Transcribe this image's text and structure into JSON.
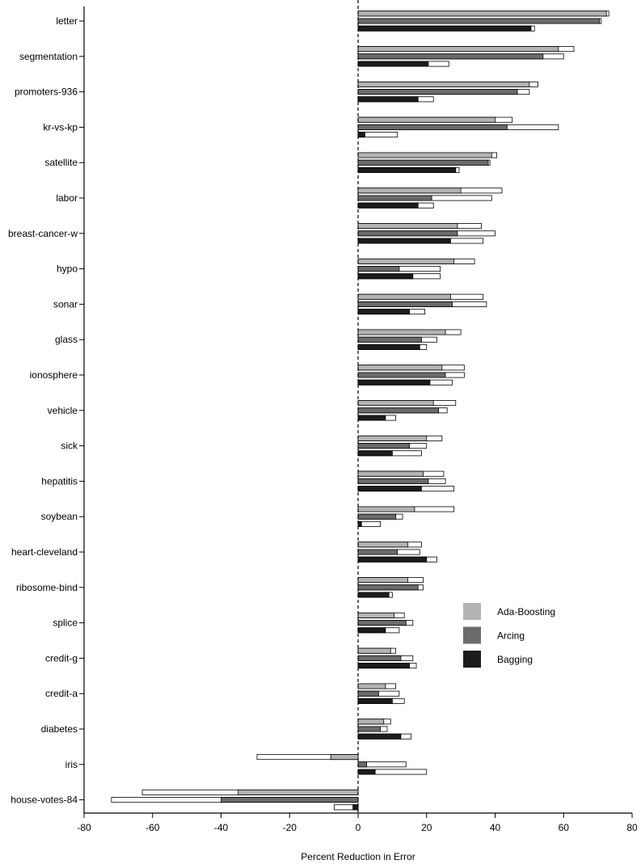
{
  "chart_data": {
    "type": "bar",
    "orientation": "horizontal",
    "xlabel": "Percent Reduction in Error",
    "xlim": [
      -80,
      80
    ],
    "x_ticks": [
      "-80",
      "-60",
      "-40",
      "-20",
      "0",
      "20",
      "40",
      "60",
      "80"
    ],
    "zero_line": "dashed",
    "grid": false,
    "legend_position": "right",
    "categories": [
      "letter",
      "segmentation",
      "promoters-936",
      "kr-vs-kp",
      "satellite",
      "labor",
      "breast-cancer-w",
      "hypo",
      "sonar",
      "glass",
      "ionosphere",
      "vehicle",
      "sick",
      "hepatitis",
      "soybean",
      "heart-cleveland",
      "ribosome-bind",
      "splice",
      "credit-g",
      "credit-a",
      "diabetes",
      "iris",
      "house-votes-84"
    ],
    "series": [
      {
        "name": "Ada-Boosting",
        "color": "#b3b3b3",
        "values": [
          72.5,
          58.5,
          50.0,
          40.0,
          39.0,
          30.0,
          29.0,
          28.0,
          27.0,
          25.5,
          24.5,
          22.0,
          20.0,
          19.0,
          16.5,
          14.5,
          14.5,
          10.5,
          9.5,
          8.0,
          7.5,
          -8.0,
          -35.0
        ],
        "upper": [
          73.2,
          63.0,
          52.5,
          45.0,
          40.5,
          42.0,
          36.0,
          34.0,
          36.5,
          30.0,
          31.0,
          28.5,
          24.5,
          25.0,
          28.0,
          18.5,
          19.0,
          13.5,
          11.0,
          11.0,
          9.5,
          -29.5,
          -63.0
        ]
      },
      {
        "name": "Arcing",
        "color": "#6b6b6b",
        "values": [
          70.5,
          54.0,
          46.5,
          43.5,
          38.0,
          21.5,
          29.0,
          12.0,
          27.5,
          18.5,
          25.5,
          23.5,
          15.0,
          20.5,
          11.0,
          11.5,
          17.5,
          14.0,
          12.5,
          6.0,
          6.5,
          2.5,
          -40.0
        ],
        "upper": [
          71.0,
          60.0,
          50.0,
          58.5,
          38.5,
          39.0,
          40.0,
          24.0,
          37.5,
          23.0,
          31.0,
          26.0,
          20.0,
          25.5,
          13.0,
          18.0,
          19.0,
          16.0,
          16.0,
          12.0,
          8.5,
          14.0,
          -72.0
        ]
      },
      {
        "name": "Bagging",
        "color": "#1c1c1c",
        "values": [
          50.5,
          20.5,
          17.5,
          2.0,
          28.5,
          17.5,
          27.0,
          16.0,
          15.0,
          18.0,
          21.0,
          8.0,
          10.0,
          18.5,
          1.0,
          20.0,
          9.0,
          8.0,
          15.0,
          10.0,
          12.5,
          5.0,
          -1.5
        ],
        "upper": [
          51.5,
          26.5,
          22.0,
          11.5,
          29.5,
          22.0,
          36.5,
          24.0,
          19.5,
          20.0,
          27.5,
          11.0,
          18.5,
          28.0,
          6.5,
          23.0,
          10.0,
          12.0,
          17.0,
          13.5,
          15.5,
          20.0,
          -7.0
        ]
      }
    ]
  }
}
